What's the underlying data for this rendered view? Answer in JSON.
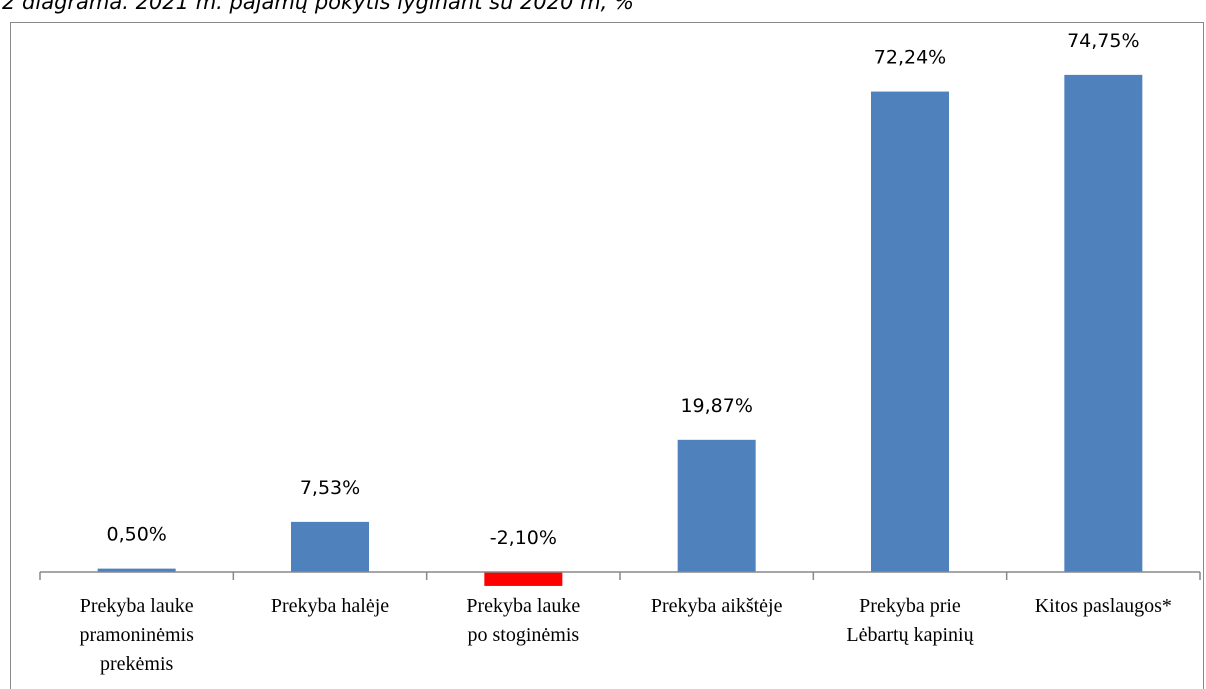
{
  "chart_data": {
    "type": "bar",
    "title": "2 diagrama. 2021 m. pajamų pokytis lyginant su 2020 m, %",
    "categories": [
      "Prekyba lauke\npramoninėmis\nprekėmis",
      "Prekyba halėje",
      "Prekyba lauke\npo stoginėmis",
      "Prekyba aikštėje",
      "Prekyba prie\nLėbartų kapinių",
      "Kitos paslaugos*"
    ],
    "values": [
      0.5,
      7.53,
      -2.1,
      19.87,
      72.24,
      74.75
    ],
    "value_labels": [
      "0,50%",
      "7,53%",
      "-2,10%",
      "19,87%",
      "72,24%",
      "74,75%"
    ],
    "colors": [
      "#4f81bd",
      "#4f81bd",
      "#ff0000",
      "#4f81bd",
      "#4f81bd",
      "#4f81bd"
    ],
    "ylim": [
      -17.6,
      82.7
    ]
  }
}
